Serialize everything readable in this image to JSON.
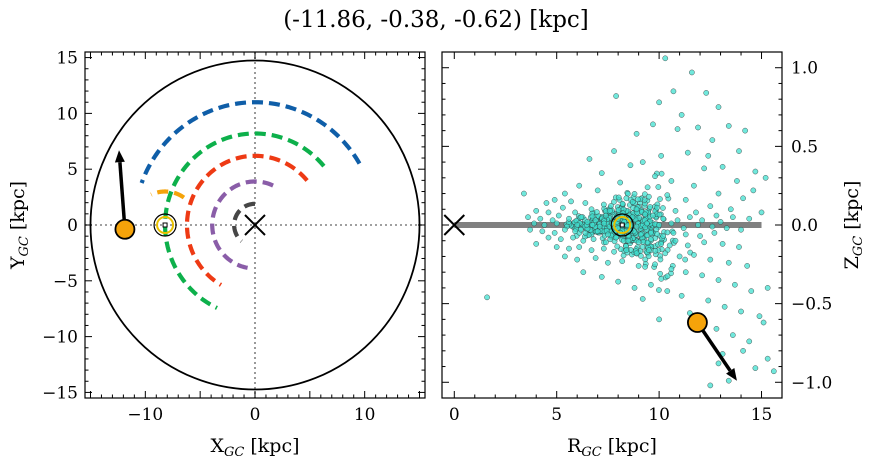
{
  "figure": {
    "title": "(-11.86, -0.38, -0.62) [kpc]"
  },
  "chart_data": [
    {
      "type": "line",
      "panel": "left",
      "xlabel": "X",
      "xlabel_sub": "GC",
      "xlabel_unit": " [kpc]",
      "ylabel": "Y",
      "ylabel_sub": "GC",
      "ylabel_unit": " [kpc]",
      "xlim": [
        -15.5,
        15.5
      ],
      "ylim": [
        -15.5,
        15.5
      ],
      "xticks": [
        -10,
        0,
        10
      ],
      "yticks": [
        -15,
        -10,
        -5,
        0,
        5,
        10,
        15
      ],
      "xtick_labels": [
        "−10",
        "0",
        "10"
      ],
      "ytick_labels": [
        "−15",
        "−10",
        "−5",
        "0",
        "5",
        "10",
        "15"
      ],
      "grid": false,
      "boundary_circle": {
        "radius": 15,
        "color": "#000000"
      },
      "reference_lines": {
        "x": 0,
        "y": 0,
        "style": "dotted",
        "color": "#808080"
      },
      "galactic_center": {
        "x": 0,
        "y": 0,
        "marker": "x"
      },
      "sun": {
        "x": -8.2,
        "y": 0,
        "marker": "circled-dot",
        "color": "#e8c000"
      },
      "object": {
        "x": -11.86,
        "y": -0.38,
        "color": "#f5a30a",
        "arrow_to": {
          "x": -12.4,
          "y": 6.7
        }
      },
      "series": [
        {
          "color": "#0f5ea8",
          "radius": 11.0,
          "start_deg": 30,
          "end_deg": 160
        },
        {
          "color": "#0db04b",
          "radius": 8.2,
          "start_deg": 40,
          "end_deg": 245
        },
        {
          "color": "#ee3a14",
          "radius": 6.2,
          "start_deg": 40,
          "end_deg": 240
        },
        {
          "color": "#8a5da8",
          "radius": 3.9,
          "start_deg": 65,
          "end_deg": 260
        },
        {
          "color": "#464646",
          "radius": 1.9,
          "start_deg": 90,
          "end_deg": 230
        },
        {
          "color": "#f5a30a",
          "radius": 3.0,
          "start_deg": 55,
          "end_deg": 115
        }
      ]
    },
    {
      "type": "scatter",
      "panel": "right",
      "xlabel": "R",
      "xlabel_sub": "GC",
      "xlabel_unit": " [kpc]",
      "ylabel": "Z",
      "ylabel_sub": "GC",
      "ylabel_unit": " [kpc]",
      "xlim": [
        -0.6,
        16.0
      ],
      "ylim": [
        -1.1,
        1.1
      ],
      "xticks": [
        0,
        5,
        10,
        15
      ],
      "yticks": [
        -1.0,
        -0.5,
        0.0,
        0.5,
        1.0
      ],
      "xtick_labels": [
        "0",
        "5",
        "10",
        "15"
      ],
      "ytick_labels": [
        "−1.0",
        "−0.5",
        "0.0",
        "0.5",
        "1.0"
      ],
      "grid": false,
      "disk_plane": {
        "z": 0,
        "x_from": 0,
        "x_to": 15,
        "color": "#808080"
      },
      "galactic_center": {
        "x": 0,
        "y": 0,
        "marker": "x"
      },
      "sun": {
        "x": 8.2,
        "y": 0,
        "marker": "circled-dot",
        "color": "#e8c000"
      },
      "object": {
        "x": 11.87,
        "y": -0.62,
        "color": "#f5a30a",
        "arrow_to": {
          "x": 13.8,
          "y": -0.99
        }
      },
      "point_color": "#40e0d0",
      "points": [
        [
          10.3,
          1.06
        ],
        [
          11.6,
          0.97
        ],
        [
          7.9,
          0.82
        ],
        [
          10.7,
          0.85
        ],
        [
          10.0,
          0.78
        ],
        [
          12.3,
          0.84
        ],
        [
          11.1,
          0.7
        ],
        [
          12.9,
          0.75
        ],
        [
          14.2,
          0.6
        ],
        [
          13.4,
          0.63
        ],
        [
          11.9,
          0.62
        ],
        [
          12.6,
          0.54
        ],
        [
          13.9,
          0.47
        ],
        [
          9.7,
          0.64
        ],
        [
          10.9,
          0.61
        ],
        [
          7.8,
          0.47
        ],
        [
          8.9,
          0.58
        ],
        [
          12.4,
          0.44
        ],
        [
          14.7,
          0.34
        ],
        [
          15.2,
          0.3
        ],
        [
          13.1,
          0.37
        ],
        [
          11.4,
          0.46
        ],
        [
          10.1,
          0.44
        ],
        [
          9.2,
          0.4
        ],
        [
          8.6,
          0.38
        ],
        [
          6.6,
          0.42
        ],
        [
          7.2,
          0.33
        ],
        [
          12.2,
          0.36
        ],
        [
          13.8,
          0.28
        ],
        [
          14.6,
          0.22
        ],
        [
          9.8,
          0.31
        ],
        [
          10.6,
          0.28
        ],
        [
          11.7,
          0.25
        ],
        [
          8.1,
          0.27
        ],
        [
          6.1,
          0.25
        ],
        [
          5.4,
          0.2
        ],
        [
          3.4,
          0.2
        ],
        [
          7.0,
          0.22
        ],
        [
          12.9,
          0.2
        ],
        [
          14.1,
          0.17
        ],
        [
          15.0,
          0.08
        ],
        [
          4.5,
          0.14
        ],
        [
          4.9,
          0.16
        ],
        [
          5.7,
          0.15
        ],
        [
          6.4,
          0.14
        ],
        [
          7.3,
          0.13
        ],
        [
          8.4,
          0.17
        ],
        [
          9.5,
          0.18
        ],
        [
          10.4,
          0.19
        ],
        [
          11.3,
          0.16
        ],
        [
          12.5,
          0.12
        ],
        [
          13.5,
          0.1
        ],
        [
          4.0,
          0.09
        ],
        [
          4.6,
          0.08
        ],
        [
          5.3,
          0.11
        ],
        [
          5.9,
          0.08
        ],
        [
          6.7,
          0.1
        ],
        [
          7.6,
          0.09
        ],
        [
          8.9,
          0.1
        ],
        [
          9.9,
          0.11
        ],
        [
          10.8,
          0.09
        ],
        [
          11.8,
          0.08
        ],
        [
          12.8,
          0.06
        ],
        [
          13.6,
          0.05
        ],
        [
          14.4,
          0.04
        ],
        [
          3.6,
          0.05
        ],
        [
          4.2,
          0.04
        ],
        [
          4.8,
          0.03
        ],
        [
          5.1,
          0.06
        ],
        [
          5.6,
          0.04
        ],
        [
          6.2,
          0.05
        ],
        [
          6.9,
          0.03
        ],
        [
          7.4,
          0.06
        ],
        [
          8.0,
          0.04
        ],
        [
          8.7,
          0.05
        ],
        [
          9.3,
          0.03
        ],
        [
          9.7,
          0.06
        ],
        [
          10.2,
          0.04
        ],
        [
          10.9,
          0.03
        ],
        [
          11.5,
          0.05
        ],
        [
          12.1,
          0.03
        ],
        [
          13.0,
          0.02
        ],
        [
          3.9,
          0.01
        ],
        [
          4.4,
          0.0
        ],
        [
          5.0,
          0.01
        ],
        [
          5.5,
          -0.01
        ],
        [
          6.0,
          0.0
        ],
        [
          6.5,
          0.02
        ],
        [
          7.1,
          -0.01
        ],
        [
          7.7,
          0.01
        ],
        [
          8.3,
          0.02
        ],
        [
          8.9,
          -0.01
        ],
        [
          9.4,
          0.01
        ],
        [
          10.0,
          0.0
        ],
        [
          10.6,
          0.01
        ],
        [
          11.2,
          -0.02
        ],
        [
          11.9,
          0.0
        ],
        [
          12.6,
          -0.01
        ],
        [
          13.3,
          -0.02
        ],
        [
          14.0,
          -0.03
        ],
        [
          3.7,
          -0.03
        ],
        [
          4.3,
          -0.04
        ],
        [
          4.9,
          -0.05
        ],
        [
          5.4,
          -0.03
        ],
        [
          5.9,
          -0.04
        ],
        [
          6.4,
          -0.05
        ],
        [
          7.0,
          -0.04
        ],
        [
          7.5,
          -0.06
        ],
        [
          8.1,
          -0.05
        ],
        [
          8.6,
          -0.04
        ],
        [
          9.1,
          -0.06
        ],
        [
          9.6,
          -0.05
        ],
        [
          10.2,
          -0.07
        ],
        [
          10.7,
          -0.05
        ],
        [
          11.3,
          -0.06
        ],
        [
          12.0,
          -0.07
        ],
        [
          12.7,
          -0.05
        ],
        [
          4.6,
          -0.08
        ],
        [
          5.2,
          -0.09
        ],
        [
          5.8,
          -0.08
        ],
        [
          6.3,
          -0.1
        ],
        [
          6.8,
          -0.09
        ],
        [
          7.4,
          -0.11
        ],
        [
          7.9,
          -0.08
        ],
        [
          8.5,
          -0.1
        ],
        [
          9.0,
          -0.11
        ],
        [
          9.6,
          -0.09
        ],
        [
          10.1,
          -0.12
        ],
        [
          10.8,
          -0.1
        ],
        [
          11.4,
          -0.13
        ],
        [
          12.2,
          -0.11
        ],
        [
          13.1,
          -0.12
        ],
        [
          13.9,
          -0.14
        ],
        [
          4.0,
          -0.12
        ],
        [
          5.0,
          -0.14
        ],
        [
          5.6,
          -0.15
        ],
        [
          6.1,
          -0.14
        ],
        [
          6.7,
          -0.16
        ],
        [
          7.3,
          -0.15
        ],
        [
          7.8,
          -0.17
        ],
        [
          8.4,
          -0.16
        ],
        [
          8.9,
          -0.18
        ],
        [
          9.5,
          -0.16
        ],
        [
          10.3,
          -0.18
        ],
        [
          11.0,
          -0.2
        ],
        [
          11.7,
          -0.19
        ],
        [
          12.5,
          -0.22
        ],
        [
          13.4,
          -0.24
        ],
        [
          14.3,
          -0.26
        ],
        [
          5.4,
          -0.2
        ],
        [
          6.0,
          -0.22
        ],
        [
          6.9,
          -0.21
        ],
        [
          7.5,
          -0.24
        ],
        [
          8.2,
          -0.23
        ],
        [
          9.0,
          -0.26
        ],
        [
          9.8,
          -0.25
        ],
        [
          10.6,
          -0.28
        ],
        [
          11.3,
          -0.3
        ],
        [
          12.1,
          -0.32
        ],
        [
          12.9,
          -0.35
        ],
        [
          13.7,
          -0.38
        ],
        [
          14.5,
          -0.42
        ],
        [
          15.3,
          -0.4
        ],
        [
          6.3,
          -0.3
        ],
        [
          7.2,
          -0.33
        ],
        [
          8.0,
          -0.36
        ],
        [
          8.8,
          -0.4
        ],
        [
          9.6,
          -0.38
        ],
        [
          10.4,
          -0.42
        ],
        [
          11.1,
          -0.45
        ],
        [
          12.4,
          -0.48
        ],
        [
          13.2,
          -0.52
        ],
        [
          14.0,
          -0.55
        ],
        [
          14.9,
          -0.58
        ],
        [
          1.6,
          -0.46
        ],
        [
          9.2,
          -0.47
        ],
        [
          10.0,
          -0.6
        ],
        [
          11.5,
          -0.56
        ],
        [
          12.8,
          -0.66
        ],
        [
          13.6,
          -0.7
        ],
        [
          14.4,
          -0.74
        ],
        [
          15.3,
          -0.85
        ],
        [
          15.1,
          -0.62
        ],
        [
          12.9,
          -0.88
        ],
        [
          13.4,
          -0.99
        ],
        [
          12.5,
          -1.02
        ],
        [
          14.7,
          -0.91
        ],
        [
          15.6,
          -0.93
        ],
        [
          13.1,
          -0.82
        ],
        [
          14.1,
          -0.8
        ]
      ]
    }
  ]
}
